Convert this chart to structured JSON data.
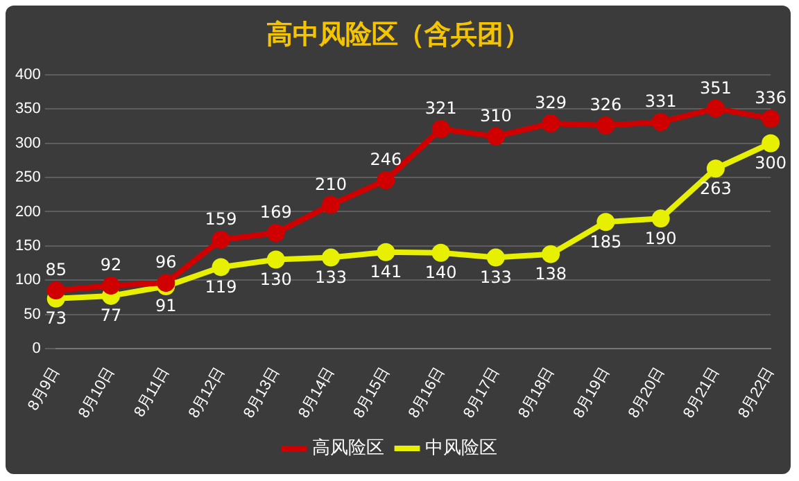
{
  "chart_data": {
    "type": "line",
    "title": "高中风险区（含兵团）",
    "categories": [
      "8月9日",
      "8月10日",
      "8月11日",
      "8月12日",
      "8月13日",
      "8月14日",
      "8月15日",
      "8月16日",
      "8月17日",
      "8月18日",
      "8月19日",
      "8月20日",
      "8月21日",
      "8月22日"
    ],
    "series": [
      {
        "name": "高风险区",
        "color": "#d00000",
        "values": [
          85,
          92,
          96,
          159,
          169,
          210,
          246,
          321,
          310,
          329,
          326,
          331,
          351,
          336
        ]
      },
      {
        "name": "中风险区",
        "color": "#e6f000",
        "values": [
          73,
          77,
          91,
          119,
          130,
          133,
          141,
          140,
          133,
          138,
          185,
          190,
          263,
          300
        ]
      }
    ],
    "ylim": [
      0,
      400
    ],
    "yticks": [
      0,
      50,
      100,
      150,
      200,
      250,
      300,
      350,
      400
    ],
    "grid": "y",
    "legend": "bottom",
    "marker": "circle",
    "line_style": "solid",
    "data_labels": true
  }
}
